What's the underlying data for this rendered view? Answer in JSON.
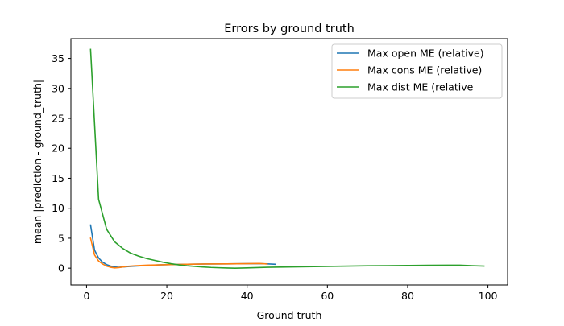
{
  "chart_data": {
    "type": "line",
    "title": "Errors by ground truth",
    "xlabel": "Ground truth",
    "ylabel": "mean |prediction - ground_truth|",
    "xlim": [
      -3.9,
      104.9
    ],
    "ylim": [
      -2.8,
      38.3
    ],
    "xticks": [
      0,
      20,
      40,
      60,
      80,
      100
    ],
    "yticks": [
      0,
      5,
      10,
      15,
      20,
      25,
      30,
      35
    ],
    "grid": false,
    "legend_position": "top-right",
    "series": [
      {
        "name": "Max open ME (relative)",
        "color": "#1f77b4",
        "x": [
          1,
          2,
          3,
          4,
          5,
          6,
          7,
          8,
          10,
          12,
          15,
          18,
          21,
          25,
          30,
          35,
          40,
          43,
          45,
          47
        ],
        "y": [
          7.2,
          3.0,
          1.7,
          1.0,
          0.6,
          0.35,
          0.2,
          0.15,
          0.25,
          0.35,
          0.45,
          0.55,
          0.6,
          0.65,
          0.7,
          0.72,
          0.75,
          0.76,
          0.72,
          0.65
        ]
      },
      {
        "name": "Max cons ME (relative)",
        "color": "#ff7f0e",
        "x": [
          1,
          2,
          3,
          4,
          5,
          6,
          7,
          8,
          10,
          12,
          15,
          18,
          21,
          25,
          30,
          35,
          40,
          43,
          45
        ],
        "y": [
          5.0,
          2.2,
          1.2,
          0.7,
          0.35,
          0.15,
          0.05,
          0.1,
          0.3,
          0.4,
          0.5,
          0.55,
          0.6,
          0.65,
          0.7,
          0.72,
          0.75,
          0.78,
          0.7
        ]
      },
      {
        "name": "Max dist ME (relative",
        "color": "#2ca02c",
        "x": [
          1,
          3,
          5,
          7,
          9,
          11,
          13,
          15,
          17,
          19,
          21,
          23,
          25,
          27,
          29,
          31,
          33,
          35,
          37,
          40,
          45,
          50,
          55,
          60,
          65,
          70,
          75,
          80,
          85,
          90,
          93,
          96,
          99
        ],
        "y": [
          36.5,
          11.5,
          6.5,
          4.4,
          3.3,
          2.5,
          2.0,
          1.6,
          1.3,
          1.0,
          0.75,
          0.55,
          0.4,
          0.3,
          0.2,
          0.12,
          0.07,
          0.03,
          0.0,
          0.05,
          0.15,
          0.2,
          0.25,
          0.3,
          0.35,
          0.4,
          0.42,
          0.45,
          0.48,
          0.5,
          0.5,
          0.42,
          0.35
        ]
      }
    ]
  }
}
